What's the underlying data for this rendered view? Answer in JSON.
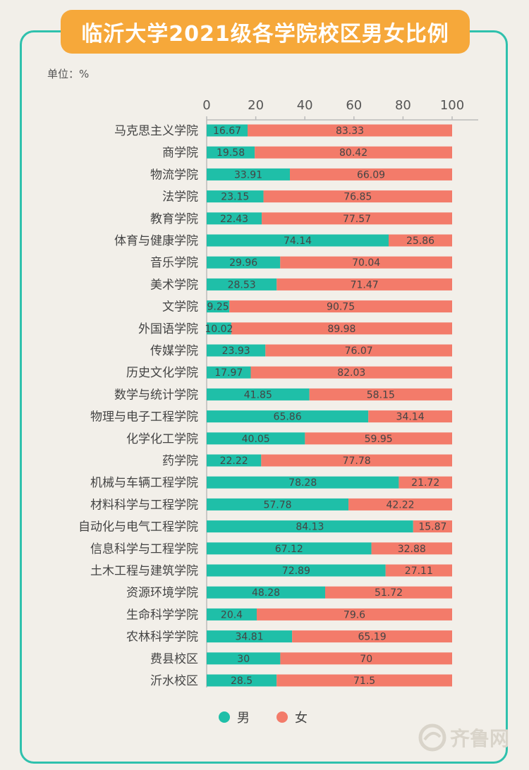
{
  "title": "临沂大学2021级各学院校区男女比例",
  "unit_label": "单位：%",
  "watermark": "齐鲁网",
  "colors": {
    "male": "#1fbfa8",
    "female": "#f37b6a",
    "accent": "#f6a83a",
    "frame": "#2fc1ad"
  },
  "legend": [
    {
      "label": "男",
      "color": "#1fbfa8"
    },
    {
      "label": "女",
      "color": "#f37b6a"
    }
  ],
  "chart_data": {
    "type": "bar",
    "orientation": "horizontal",
    "stacked": true,
    "xlim": [
      0,
      100
    ],
    "xticks": [
      "0",
      "20",
      "40",
      "60",
      "80",
      "100"
    ],
    "categories": [
      "马克思主义学院",
      "商学院",
      "物流学院",
      "法学院",
      "教育学院",
      "体育与健康学院",
      "音乐学院",
      "美术学院",
      "文学院",
      "外国语学院",
      "传媒学院",
      "历史文化学院",
      "数学与统计学院",
      "物理与电子工程学院",
      "化学化工学院",
      "药学院",
      "机械与车辆工程学院",
      "材料科学与工程学院",
      "自动化与电气工程学院",
      "信息科学与工程学院",
      "土木工程与建筑学院",
      "资源环境学院",
      "生命科学学院",
      "农林科学学院",
      "费县校区",
      "沂水校区"
    ],
    "series": [
      {
        "name": "男",
        "values": [
          16.67,
          19.58,
          33.91,
          23.15,
          22.43,
          74.14,
          29.96,
          28.53,
          9.25,
          10.02,
          23.93,
          17.97,
          41.85,
          65.86,
          40.05,
          22.22,
          78.28,
          57.78,
          84.13,
          67.12,
          72.89,
          48.28,
          20.4,
          34.81,
          30,
          28.5
        ],
        "labels": [
          "16.67",
          "19.58",
          "33.91",
          "23.15",
          "22.43",
          "74.14",
          "29.96",
          "28.53",
          "9.25",
          "10.02",
          "23.93",
          "17.97",
          "41.85",
          "65.86",
          "40.05",
          "22.22",
          "78.28",
          "57.78",
          "84.13",
          "67.12",
          "72.89",
          "48.28",
          "20.4",
          "34.81",
          "30",
          "28.5"
        ]
      },
      {
        "name": "女",
        "values": [
          83.33,
          80.42,
          66.09,
          76.85,
          77.57,
          25.86,
          70.04,
          71.47,
          90.75,
          89.98,
          76.07,
          82.03,
          58.15,
          34.14,
          59.95,
          77.78,
          21.72,
          42.22,
          15.87,
          32.88,
          27.11,
          51.72,
          79.6,
          65.19,
          70,
          71.5
        ],
        "labels": [
          "83.33",
          "80.42",
          "66.09",
          "76.85",
          "77.57",
          "25.86",
          "70.04",
          "71.47",
          "90.75",
          "89.98",
          "76.07",
          "82.03",
          "58.15",
          "34.14",
          "59.95",
          "77.78",
          "21.72",
          "42.22",
          "15.87",
          "32.88",
          "27.11",
          "51.72",
          "79.6",
          "65.19",
          "70",
          "71.5"
        ]
      }
    ],
    "legend_position": "bottom",
    "grid": false
  }
}
